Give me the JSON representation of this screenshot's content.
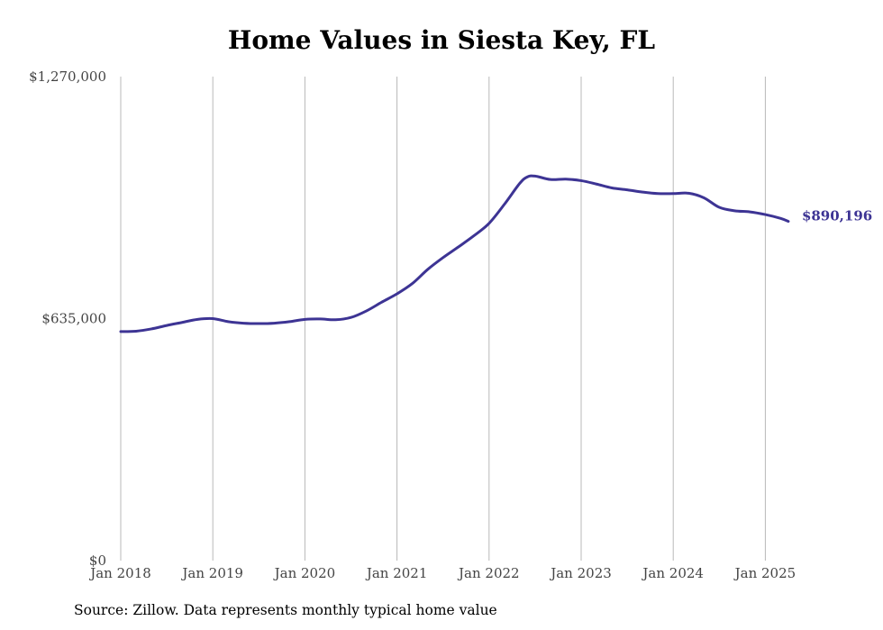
{
  "chart_data": {
    "type": "line",
    "title": "Home Values in Siesta Key, FL",
    "note": "Source: Zillow. Data represents monthly typical home value",
    "xlabel": "",
    "ylabel": "",
    "ylim": [
      0,
      1270000
    ],
    "y_ticks": [
      {
        "value": 0,
        "label": "$0"
      },
      {
        "value": 635000,
        "label": "$635,000"
      },
      {
        "value": 1270000,
        "label": "$1,270,000"
      }
    ],
    "x_range": [
      "2018-01",
      "2025-04"
    ],
    "x_ticks": [
      {
        "date": "2018-01",
        "label": "Jan 2018"
      },
      {
        "date": "2019-01",
        "label": "Jan 2019"
      },
      {
        "date": "2020-01",
        "label": "Jan 2020"
      },
      {
        "date": "2021-01",
        "label": "Jan 2021"
      },
      {
        "date": "2022-01",
        "label": "Jan 2022"
      },
      {
        "date": "2023-01",
        "label": "Jan 2023"
      },
      {
        "date": "2024-01",
        "label": "Jan 2024"
      },
      {
        "date": "2025-01",
        "label": "Jan 2025"
      }
    ],
    "grid": {
      "vertical": true,
      "horizontal": false
    },
    "line_color": "#3d3494",
    "end_label": "$890,196",
    "series": [
      {
        "x": [
          "2018-01",
          "2018-03",
          "2018-05",
          "2018-07",
          "2018-09",
          "2018-11",
          "2019-01",
          "2019-03",
          "2019-05",
          "2019-07",
          "2019-09",
          "2019-11",
          "2020-01",
          "2020-03",
          "2020-05",
          "2020-07",
          "2020-09",
          "2020-11",
          "2021-01",
          "2021-03",
          "2021-05",
          "2021-07",
          "2021-09",
          "2021-11",
          "2022-01",
          "2022-03",
          "2022-05",
          "2022-06",
          "2022-07",
          "2022-09",
          "2022-11",
          "2023-01",
          "2023-03",
          "2023-05",
          "2023-07",
          "2023-09",
          "2023-11",
          "2024-01",
          "2024-03",
          "2024-05",
          "2024-07",
          "2024-09",
          "2024-11",
          "2025-01",
          "2025-03",
          "2025-04"
        ],
        "values": [
          601000,
          602000,
          608000,
          617000,
          625000,
          633000,
          635000,
          627000,
          623000,
          622000,
          623000,
          627000,
          633000,
          634000,
          632000,
          638000,
          655000,
          678000,
          700000,
          727000,
          764000,
          795000,
          823000,
          852000,
          885000,
          935000,
          990000,
          1007000,
          1009000,
          1000000,
          1001000,
          997000,
          988000,
          978000,
          973000,
          967000,
          963000,
          963000,
          964000,
          952000,
          927000,
          918000,
          915000,
          908000,
          898000,
          890196
        ]
      }
    ]
  }
}
